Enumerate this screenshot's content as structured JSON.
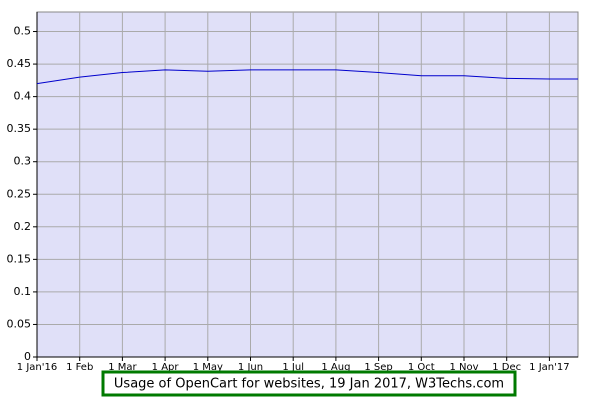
{
  "chart_data": {
    "type": "line",
    "title": "Usage of OpenCart for websites, 19 Jan 2017, W3Techs.com",
    "categories": [
      "1 Jan'16",
      "1 Feb",
      "1 Mar",
      "1 Apr",
      "1 May",
      "1 Jun",
      "1 Jul",
      "1 Aug",
      "1 Sep",
      "1 Oct",
      "1 Nov",
      "1 Dec",
      "1 Jan'17",
      null
    ],
    "values": [
      0.42,
      0.43,
      0.437,
      0.441,
      0.439,
      0.441,
      0.441,
      0.441,
      0.437,
      0.432,
      0.432,
      0.428,
      0.427,
      0.427
    ],
    "color": "#0000cc",
    "ylim": [
      0,
      0.53
    ],
    "yticks": [
      0,
      0.05,
      0.1,
      0.15,
      0.2,
      0.25,
      0.3,
      0.35,
      0.4,
      0.45,
      0.5
    ],
    "grid": true
  }
}
